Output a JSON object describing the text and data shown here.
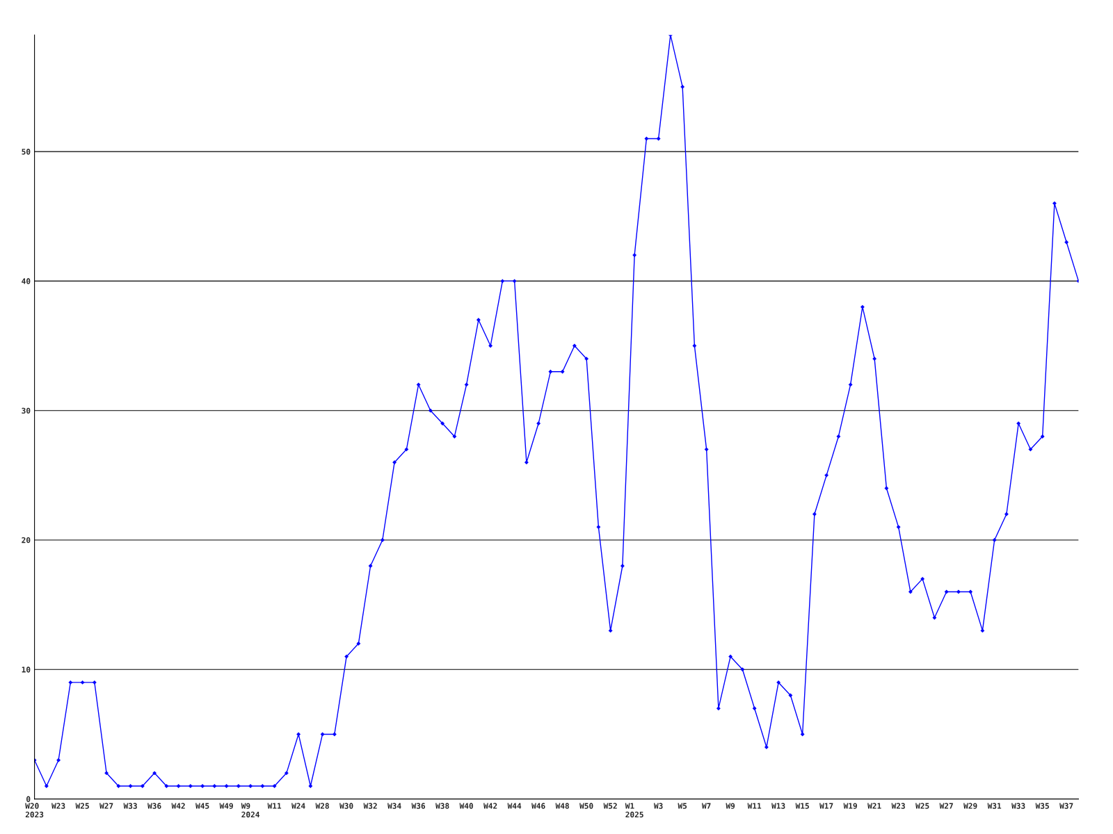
{
  "chart_data": {
    "type": "line",
    "categories": [
      "W20\n2023",
      null,
      "W23",
      null,
      "W25",
      null,
      "W27",
      null,
      "W33",
      null,
      "W36",
      null,
      "W42",
      null,
      "W45",
      null,
      "W49",
      null,
      "W9\n2024",
      null,
      "W11",
      null,
      "W24",
      null,
      "W28",
      null,
      "W30",
      null,
      "W32",
      null,
      "W34",
      null,
      "W36",
      null,
      "W38",
      null,
      "W40",
      null,
      "W42",
      null,
      "W44",
      null,
      "W46",
      null,
      "W48",
      null,
      "W50",
      null,
      "W52",
      null,
      "W1\n2025",
      null,
      "W3",
      null,
      "W5",
      null,
      "W7",
      null,
      "W9",
      null,
      "W11",
      null,
      "W13",
      null,
      "W15",
      null,
      "W17",
      null,
      "W19",
      null,
      "W21",
      null,
      "W23",
      null,
      "W25",
      null,
      "W27",
      null,
      "W29",
      null,
      "W31",
      null,
      "W33",
      null,
      "W35",
      null,
      "W37",
      null
    ],
    "series": [
      {
        "color": "#0000ff",
        "values": [
          3,
          1,
          3,
          9,
          9,
          9,
          2,
          1,
          1,
          1,
          2,
          1,
          1,
          1,
          1,
          1,
          1,
          1,
          1,
          1,
          1,
          2,
          5,
          1,
          5,
          5,
          11,
          12,
          18,
          20,
          26,
          27,
          32,
          30,
          29,
          28,
          32,
          37,
          35,
          40,
          40,
          26,
          29,
          33,
          33,
          35,
          34,
          21,
          13,
          18,
          42,
          51,
          51,
          59,
          55,
          35,
          27,
          7,
          11,
          10,
          7,
          4,
          9,
          8,
          5,
          22,
          25,
          28,
          32,
          38,
          34,
          24,
          21,
          16,
          17,
          14,
          16,
          16,
          16,
          13,
          20,
          22,
          29,
          27,
          28,
          46,
          43,
          40
        ]
      }
    ],
    "ylim": [
      0,
      59
    ],
    "yticks": [
      0,
      10,
      20,
      30,
      40,
      50
    ],
    "grid": "y",
    "marker": "diamond",
    "line_style": "solid",
    "legend": false
  }
}
